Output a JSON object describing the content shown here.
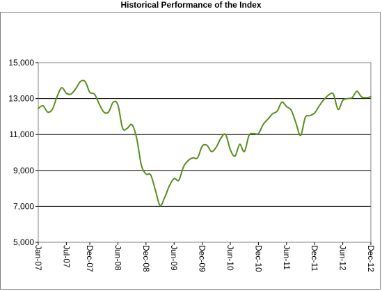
{
  "chart_data": {
    "type": "line",
    "title": "Historical Performance of the Index",
    "xlabel": "",
    "ylabel": "",
    "ylim": [
      5000,
      15000
    ],
    "y_ticks": [
      5000,
      7000,
      9000,
      11000,
      13000,
      15000
    ],
    "y_tick_labels": [
      "5,000",
      "7,000",
      "9,000",
      "11,000",
      "13,000",
      "15,000"
    ],
    "x_tick_labels": [
      "Jan-07",
      "Jul-07",
      "Dec-07",
      "Jun-08",
      "Dec-08",
      "Jun-09",
      "Dec-09",
      "Jun-10",
      "Dec-10",
      "Jun-11",
      "Dec-11",
      "Jun-12",
      "Dec-12"
    ],
    "grid": "horizontal",
    "legend": "none",
    "line_color": "#5b8c1e",
    "series": [
      {
        "x": [
          "Jan-07",
          "Feb-07",
          "Mar-07",
          "Apr-07",
          "May-07",
          "Jun-07",
          "Jul-07",
          "Aug-07",
          "Sep-07",
          "Oct-07",
          "Nov-07",
          "Dec-07",
          "Jan-08",
          "Feb-08",
          "Mar-08",
          "Apr-08",
          "May-08",
          "Jun-08",
          "Jul-08",
          "Aug-08",
          "Sep-08",
          "Oct-08",
          "Nov-08",
          "Dec-08",
          "Jan-09",
          "Feb-09",
          "Mar-09",
          "Apr-09",
          "May-09",
          "Jun-09",
          "Jul-09",
          "Aug-09",
          "Sep-09",
          "Oct-09",
          "Nov-09",
          "Dec-09",
          "Jan-10",
          "Feb-10",
          "Mar-10",
          "Apr-10",
          "May-10",
          "Jun-10",
          "Jul-10",
          "Aug-10",
          "Sep-10",
          "Oct-10",
          "Nov-10",
          "Dec-10",
          "Jan-11",
          "Feb-11",
          "Mar-11",
          "Apr-11",
          "May-11",
          "Jun-11",
          "Jul-11",
          "Aug-11",
          "Sep-11",
          "Oct-11",
          "Nov-11",
          "Dec-11",
          "Jan-12",
          "Feb-12",
          "Mar-12",
          "Apr-12",
          "May-12",
          "Jun-12",
          "Jul-12",
          "Aug-12",
          "Sep-12",
          "Oct-12",
          "Nov-12",
          "Dec-12"
        ],
        "values": [
          12450,
          12600,
          12250,
          12400,
          13100,
          13600,
          13300,
          13250,
          13550,
          13950,
          13950,
          13350,
          13250,
          12700,
          12250,
          12250,
          12800,
          12650,
          11350,
          11350,
          11550,
          10800,
          9300,
          8800,
          8750,
          7900,
          7050,
          7500,
          8150,
          8550,
          8450,
          9200,
          9550,
          9700,
          9700,
          10350,
          10400,
          10050,
          10300,
          10800,
          11000,
          10150,
          9800,
          10450,
          10050,
          10950,
          11050,
          11050,
          11550,
          11850,
          12150,
          12300,
          12800,
          12550,
          12350,
          11650,
          10950,
          11950,
          12050,
          12200,
          12600,
          12950,
          13200,
          13250,
          12400,
          12900,
          13000,
          13050,
          13400,
          13100,
          13050,
          13100
        ]
      }
    ]
  }
}
